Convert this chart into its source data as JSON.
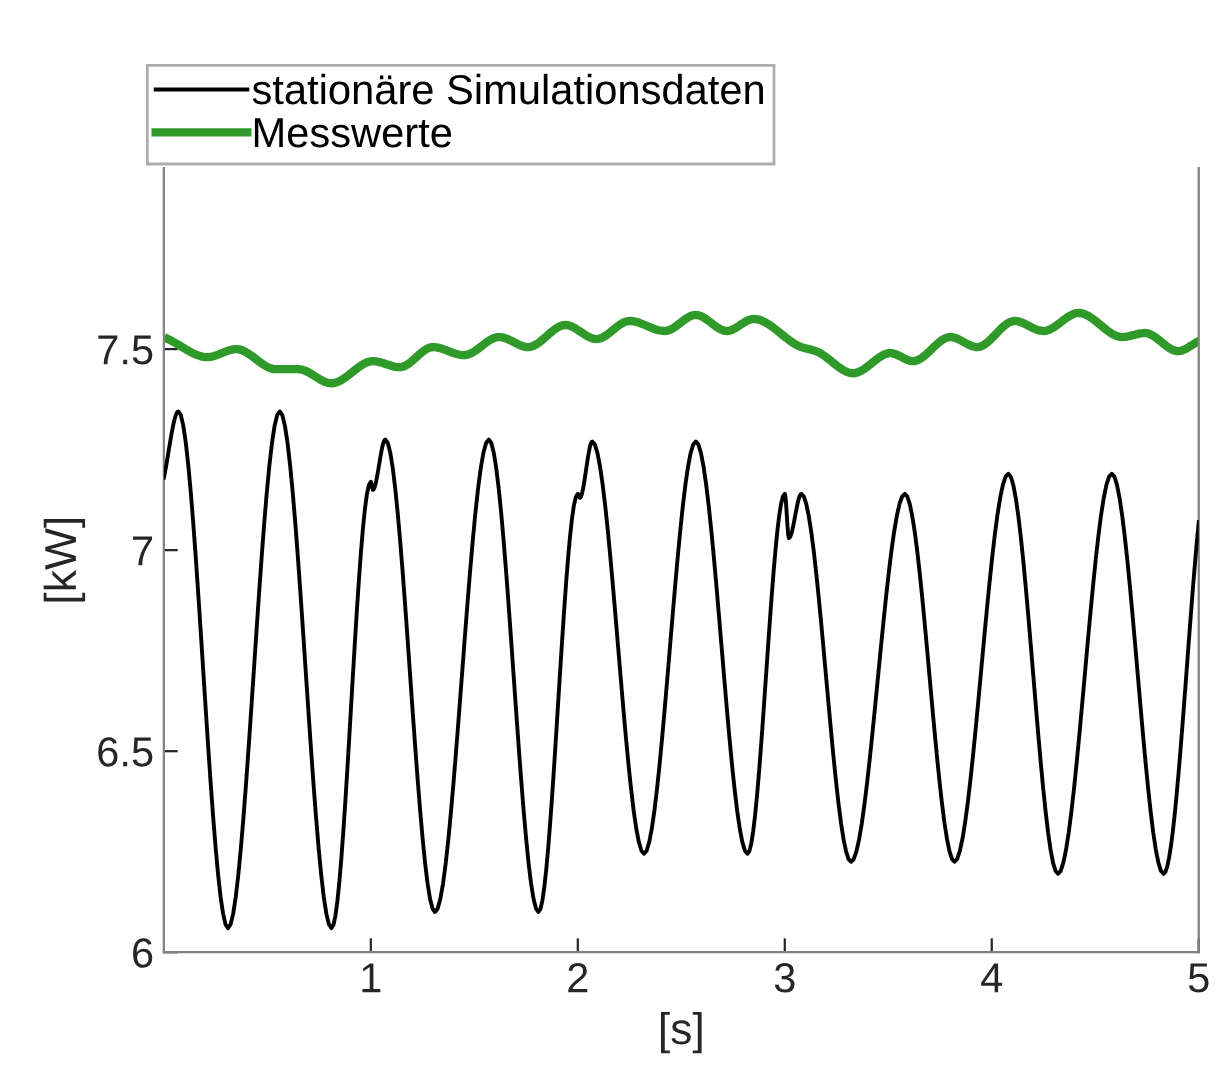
{
  "chart_data": {
    "type": "line",
    "xlabel": "[s]",
    "ylabel": "[kW]",
    "xlim": [
      0,
      5
    ],
    "xticks": [
      1,
      2,
      3,
      4,
      5
    ],
    "ylim": [
      6,
      7.95
    ],
    "yticks": [
      6,
      6.5,
      7,
      7.5
    ],
    "grid": false,
    "legend": "top left",
    "marker": "none",
    "line_style": "solid",
    "series": [
      {
        "name": "stationäre Simulationsdaten",
        "color": "#000000",
        "x": [
          0,
          0.07,
          0.31,
          0.56,
          0.81,
          1.0,
          1.01,
          1.07,
          1.31,
          1.57,
          1.81,
          2.0,
          2.01,
          2.07,
          2.32,
          2.57,
          2.82,
          3.0,
          3.02,
          3.08,
          3.32,
          3.58,
          3.82,
          4.08,
          4.32,
          4.58,
          4.83,
          5.0
        ],
        "values": [
          7.18,
          7.345,
          6.06,
          7.345,
          6.06,
          7.17,
          7.15,
          7.275,
          6.1,
          7.275,
          6.1,
          7.14,
          7.13,
          7.27,
          6.245,
          7.27,
          6.245,
          7.14,
          7.03,
          7.14,
          6.225,
          7.14,
          6.225,
          7.19,
          6.195,
          7.19,
          6.195,
          7.07
        ]
      },
      {
        "name": "Messwerte",
        "color": "#2f9a2a",
        "x": [
          0.02,
          0.21,
          0.35,
          0.54,
          0.65,
          0.81,
          1.01,
          1.14,
          1.3,
          1.45,
          1.62,
          1.76,
          1.94,
          2.09,
          2.25,
          2.42,
          2.57,
          2.72,
          2.85,
          3.08,
          3.15,
          3.33,
          3.51,
          3.62,
          3.8,
          3.93,
          4.11,
          4.25,
          4.42,
          4.63,
          4.74,
          4.9,
          5.0
        ],
        "values": [
          7.525,
          7.48,
          7.5,
          7.45,
          7.45,
          7.415,
          7.47,
          7.455,
          7.505,
          7.485,
          7.53,
          7.505,
          7.56,
          7.525,
          7.57,
          7.545,
          7.585,
          7.545,
          7.575,
          7.505,
          7.495,
          7.44,
          7.49,
          7.47,
          7.53,
          7.505,
          7.57,
          7.545,
          7.59,
          7.53,
          7.54,
          7.495,
          7.52
        ]
      }
    ]
  }
}
